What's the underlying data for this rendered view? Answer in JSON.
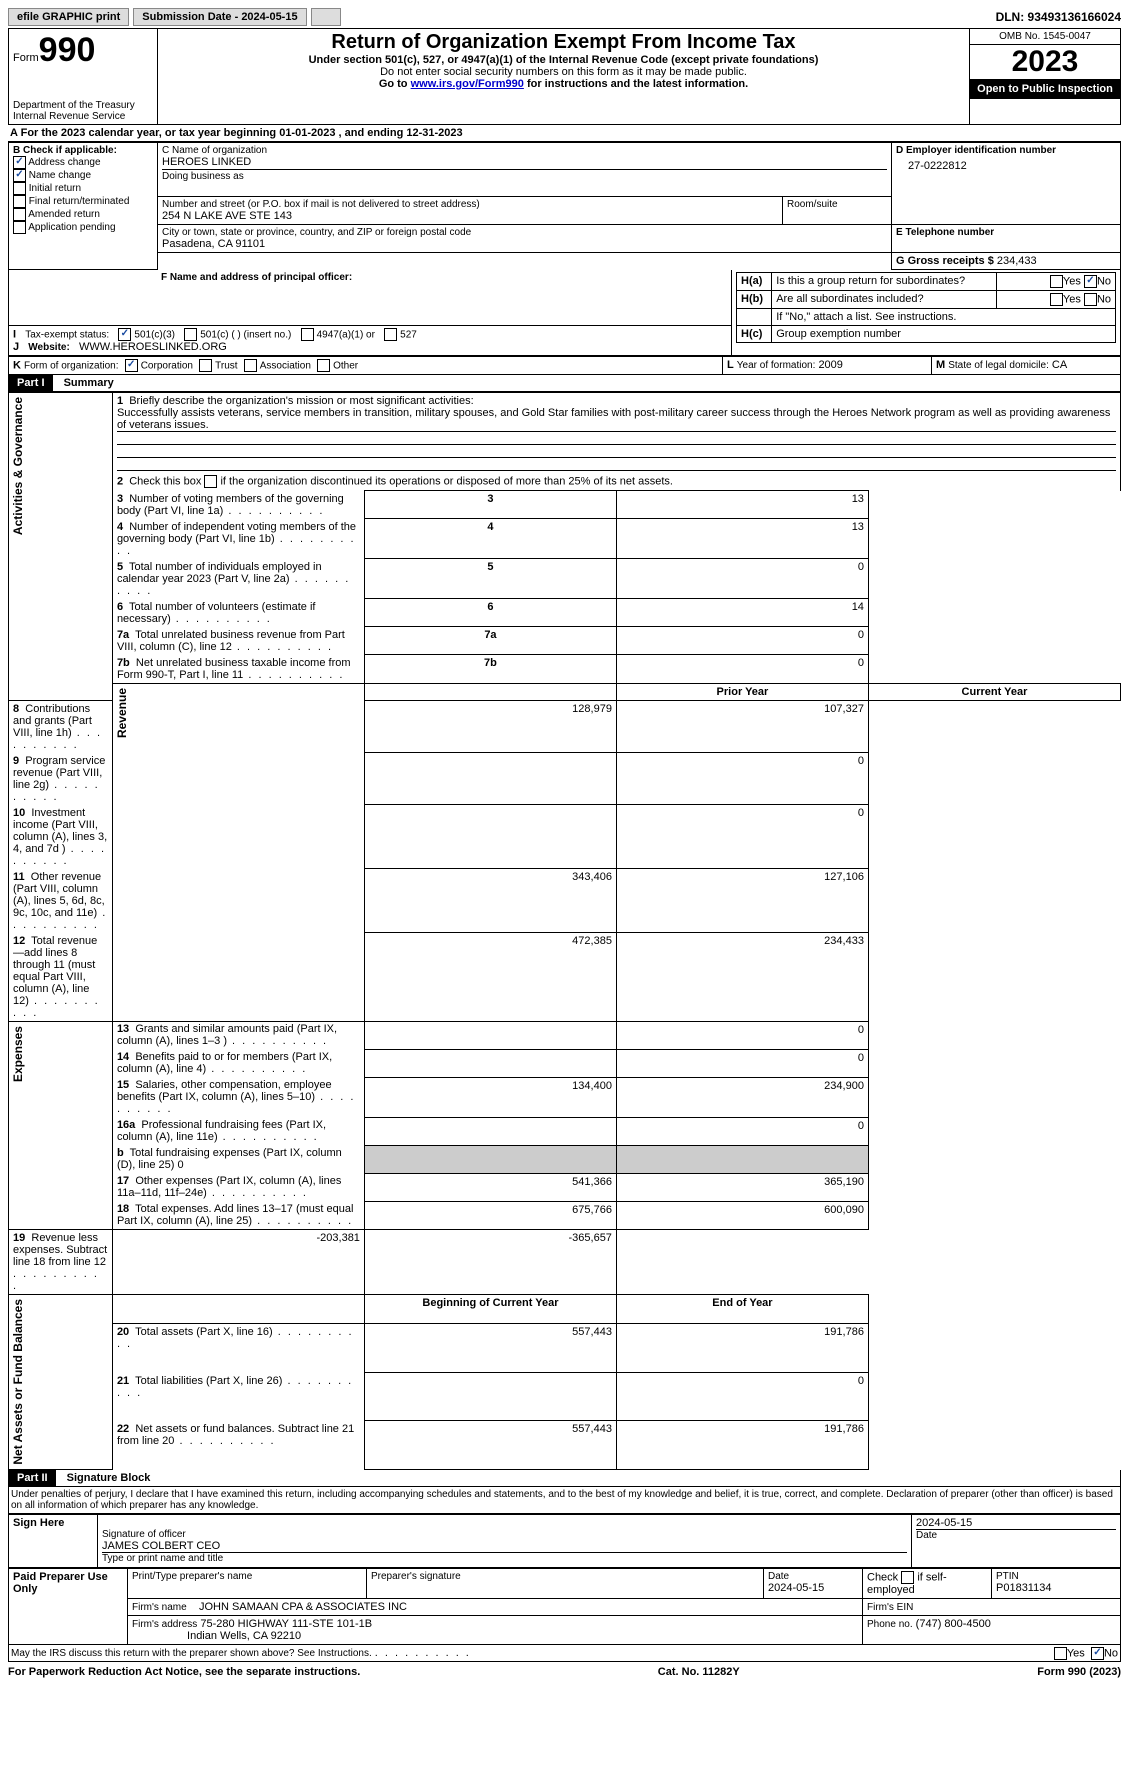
{
  "topbar": {
    "efile": "efile GRAPHIC print",
    "submission_label": "Submission Date - 2024-05-15",
    "dln_label": "DLN: 93493136166024"
  },
  "header": {
    "form_word": "Form",
    "form_no": "990",
    "title": "Return of Organization Exempt From Income Tax",
    "sub1": "Under section 501(c), 527, or 4947(a)(1) of the Internal Revenue Code (except private foundations)",
    "sub2": "Do not enter social security numbers on this form as it may be made public.",
    "sub3_pre": "Go to ",
    "sub3_link": "www.irs.gov/Form990",
    "sub3_post": " for instructions and the latest information.",
    "dept": "Department of the Treasury\nInternal Revenue Service",
    "omb": "OMB No. 1545-0047",
    "year": "2023",
    "open": "Open to Public Inspection"
  },
  "A": {
    "text": "For the 2023 calendar year, or tax year beginning 01-01-2023",
    "text2": ", and ending 12-31-2023"
  },
  "B": {
    "label": "Check if applicable:",
    "items": [
      "Address change",
      "Name change",
      "Initial return",
      "Final return/terminated",
      "Amended return",
      "Application pending"
    ],
    "checked": [
      true,
      true,
      false,
      false,
      false,
      false
    ]
  },
  "C": {
    "name_label": "C Name of organization",
    "name": "HEROES LINKED",
    "dba_label": "Doing business as",
    "addr_label": "Number and street (or P.O. box if mail is not delivered to street address)",
    "addr": "254 N LAKE AVE STE 143",
    "room_label": "Room/suite",
    "city_label": "City or town, state or province, country, and ZIP or foreign postal code",
    "city": "Pasadena, CA  91101"
  },
  "D": {
    "label": "D Employer identification number",
    "value": "27-0222812"
  },
  "E": {
    "label": "E Telephone number"
  },
  "G": {
    "label": "G Gross receipts $",
    "value": "234,433"
  },
  "F": {
    "label": "F  Name and address of principal officer:"
  },
  "H": {
    "a": "Is this a group return for subordinates?",
    "b": "Are all subordinates included?",
    "b_note": "If \"No,\" attach a list. See instructions.",
    "c": "Group exemption number"
  },
  "I": {
    "label": "Tax-exempt status:",
    "opts": [
      "501(c)(3)",
      "501(c) (  ) (insert no.)",
      "4947(a)(1) or",
      "527"
    ]
  },
  "J": {
    "label": "Website:",
    "value": "WWW.HEROESLINKED.ORG"
  },
  "K": {
    "label": "Form of organization:",
    "opts": [
      "Corporation",
      "Trust",
      "Association",
      "Other"
    ]
  },
  "L": {
    "label": "Year of formation:",
    "value": "2009"
  },
  "M": {
    "label": "State of legal domicile:",
    "value": "CA"
  },
  "part1": {
    "header": "Part I",
    "title": "Summary",
    "q1": "Briefly describe the organization's mission or most significant activities:",
    "q1_text": "Successfully assists veterans, service members in transition, military spouses, and Gold Star families with post-military career success through the Heroes Network program as well as providing awareness of veterans issues.",
    "q2": "Check this box",
    "q2b": "if the organization discontinued its operations or disposed of more than 25% of its net assets.",
    "sections": {
      "gov": "Activities & Governance",
      "rev": "Revenue",
      "exp": "Expenses",
      "net": "Net Assets or Fund Balances"
    },
    "col_prior": "Prior Year",
    "col_current": "Current Year",
    "col_begin": "Beginning of Current Year",
    "col_end": "End of Year",
    "lines_gov": [
      {
        "n": "3",
        "t": "Number of voting members of the governing body (Part VI, line 1a)",
        "v": "13"
      },
      {
        "n": "4",
        "t": "Number of independent voting members of the governing body (Part VI, line 1b)",
        "v": "13"
      },
      {
        "n": "5",
        "t": "Total number of individuals employed in calendar year 2023 (Part V, line 2a)",
        "v": "0"
      },
      {
        "n": "6",
        "t": "Total number of volunteers (estimate if necessary)",
        "v": "14"
      },
      {
        "n": "7a",
        "t": "Total unrelated business revenue from Part VIII, column (C), line 12",
        "v": "0"
      },
      {
        "n": "7b",
        "t": "Net unrelated business taxable income from Form 990-T, Part I, line 11",
        "v": "0"
      }
    ],
    "lines_rev": [
      {
        "n": "8",
        "t": "Contributions and grants (Part VIII, line 1h)",
        "p": "128,979",
        "c": "107,327"
      },
      {
        "n": "9",
        "t": "Program service revenue (Part VIII, line 2g)",
        "p": "",
        "c": "0"
      },
      {
        "n": "10",
        "t": "Investment income (Part VIII, column (A), lines 3, 4, and 7d )",
        "p": "",
        "c": "0"
      },
      {
        "n": "11",
        "t": "Other revenue (Part VIII, column (A), lines 5, 6d, 8c, 9c, 10c, and 11e)",
        "p": "343,406",
        "c": "127,106"
      },
      {
        "n": "12",
        "t": "Total revenue—add lines 8 through 11 (must equal Part VIII, column (A), line 12)",
        "p": "472,385",
        "c": "234,433"
      }
    ],
    "lines_exp": [
      {
        "n": "13",
        "t": "Grants and similar amounts paid (Part IX, column (A), lines 1–3 )",
        "p": "",
        "c": "0"
      },
      {
        "n": "14",
        "t": "Benefits paid to or for members (Part IX, column (A), line 4)",
        "p": "",
        "c": "0"
      },
      {
        "n": "15",
        "t": "Salaries, other compensation, employee benefits (Part IX, column (A), lines 5–10)",
        "p": "134,400",
        "c": "234,900"
      },
      {
        "n": "16a",
        "t": "Professional fundraising fees (Part IX, column (A), line 11e)",
        "p": "",
        "c": "0"
      },
      {
        "n": "b",
        "t": "Total fundraising expenses (Part IX, column (D), line 25) 0",
        "p": "grey",
        "c": "grey"
      },
      {
        "n": "17",
        "t": "Other expenses (Part IX, column (A), lines 11a–11d, 11f–24e)",
        "p": "541,366",
        "c": "365,190"
      },
      {
        "n": "18",
        "t": "Total expenses. Add lines 13–17 (must equal Part IX, column (A), line 25)",
        "p": "675,766",
        "c": "600,090"
      },
      {
        "n": "19",
        "t": "Revenue less expenses. Subtract line 18 from line 12",
        "p": "-203,381",
        "c": "-365,657"
      }
    ],
    "lines_net": [
      {
        "n": "20",
        "t": "Total assets (Part X, line 16)",
        "p": "557,443",
        "c": "191,786"
      },
      {
        "n": "21",
        "t": "Total liabilities (Part X, line 26)",
        "p": "",
        "c": "0"
      },
      {
        "n": "22",
        "t": "Net assets or fund balances. Subtract line 21 from line 20",
        "p": "557,443",
        "c": "191,786"
      }
    ]
  },
  "part2": {
    "header": "Part II",
    "title": "Signature Block",
    "perjury": "Under penalties of perjury, I declare that I have examined this return, including accompanying schedules and statements, and to the best of my knowledge and belief, it is true, correct, and complete. Declaration of preparer (other than officer) is based on all information of which preparer has any knowledge.",
    "sign_here": "Sign Here",
    "sig_officer": "Signature of officer",
    "officer": "JAMES COLBERT  CEO",
    "type_label": "Type or print name and title",
    "date": "2024-05-15",
    "date_label": "Date",
    "paid": "Paid Preparer Use Only",
    "prep_name_label": "Print/Type preparer's name",
    "prep_sig_label": "Preparer's signature",
    "prep_date": "2024-05-15",
    "check_self": "Check",
    "check_self2": "if self-employed",
    "ptin_label": "PTIN",
    "ptin": "P01831134",
    "firm_name_label": "Firm's name",
    "firm_name": "JOHN SAMAAN CPA & ASSOCIATES INC",
    "firm_ein_label": "Firm's EIN",
    "firm_addr_label": "Firm's address",
    "firm_addr": "75-280 HIGHWAY 111-STE 101-1B",
    "firm_city": "Indian Wells, CA  92210",
    "phone_label": "Phone no.",
    "phone": "(747) 800-4500",
    "irs_q": "May the IRS discuss this return with the preparer shown above? See Instructions."
  },
  "footer": {
    "left": "For Paperwork Reduction Act Notice, see the separate instructions.",
    "mid": "Cat. No. 11282Y",
    "right": "Form 990 (2023)"
  },
  "yes": "Yes",
  "no": "No"
}
